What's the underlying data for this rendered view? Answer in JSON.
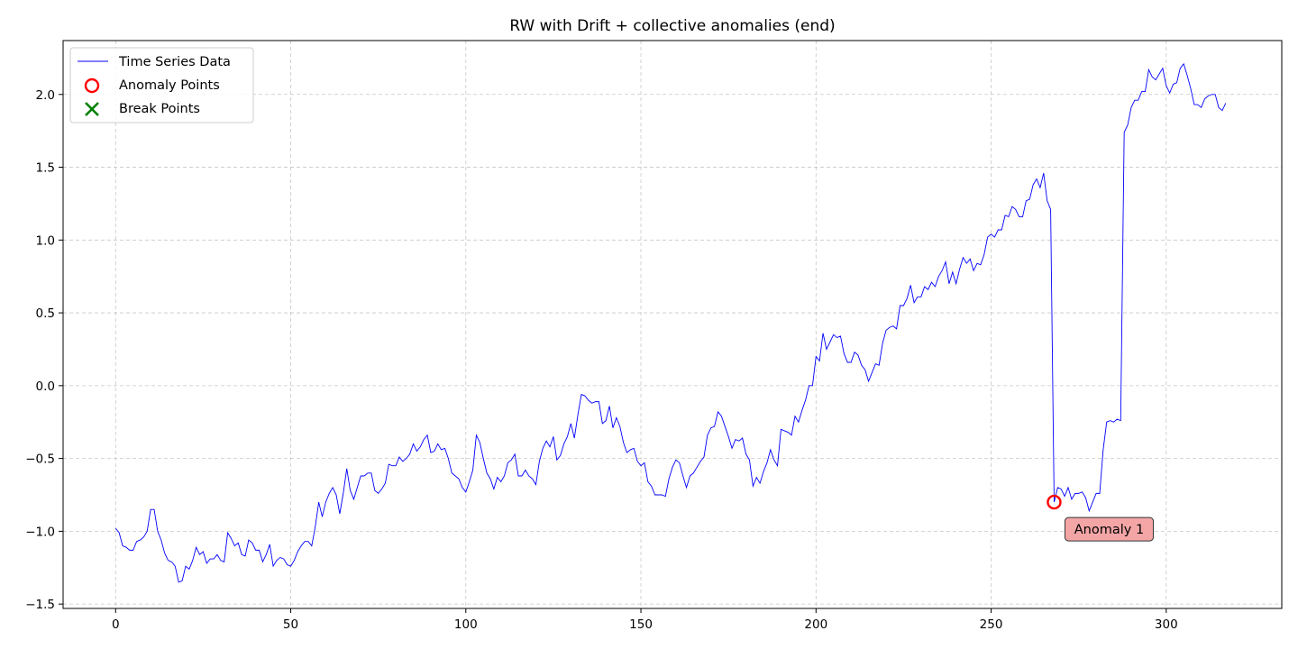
{
  "chart_data": {
    "type": "line",
    "title": "RW with Drift + collective anomalies (end)",
    "xlabel": "",
    "ylabel": "",
    "xlim": [
      -15,
      333
    ],
    "ylim": [
      -1.53,
      2.37
    ],
    "xticks": [
      0,
      50,
      100,
      150,
      200,
      250,
      300
    ],
    "yticks": [
      -1.5,
      -1.0,
      -0.5,
      0.0,
      0.5,
      1.0,
      1.5,
      2.0
    ],
    "grid": true,
    "legend_position": "top-left",
    "legend": {
      "series": "Time Series Data",
      "anomalies": "Anomaly Points",
      "breaks": "Break Points"
    },
    "colors": {
      "series": "#0000ff",
      "anomaly": "#ff0000",
      "break": "#008000",
      "annotation_fill": "#f4a6a6"
    },
    "series": [
      {
        "name": "Time Series Data",
        "x_start": 0,
        "values": [
          -0.98,
          -1.01,
          -1.1,
          -1.11,
          -1.13,
          -1.13,
          -1.07,
          -1.06,
          -1.04,
          -1.0,
          -0.85,
          -0.85,
          -1.0,
          -1.06,
          -1.15,
          -1.2,
          -1.21,
          -1.24,
          -1.35,
          -1.34,
          -1.24,
          -1.26,
          -1.2,
          -1.11,
          -1.16,
          -1.14,
          -1.22,
          -1.19,
          -1.19,
          -1.16,
          -1.2,
          -1.21,
          -1.01,
          -1.05,
          -1.1,
          -1.08,
          -1.16,
          -1.17,
          -1.06,
          -1.08,
          -1.13,
          -1.13,
          -1.21,
          -1.16,
          -1.09,
          -1.24,
          -1.2,
          -1.18,
          -1.19,
          -1.23,
          -1.24,
          -1.2,
          -1.14,
          -1.1,
          -1.07,
          -1.07,
          -1.1,
          -0.97,
          -0.8,
          -0.9,
          -0.8,
          -0.74,
          -0.7,
          -0.75,
          -0.88,
          -0.74,
          -0.57,
          -0.72,
          -0.78,
          -0.7,
          -0.62,
          -0.62,
          -0.6,
          -0.6,
          -0.72,
          -0.74,
          -0.71,
          -0.67,
          -0.54,
          -0.55,
          -0.55,
          -0.49,
          -0.52,
          -0.5,
          -0.47,
          -0.4,
          -0.45,
          -0.42,
          -0.37,
          -0.34,
          -0.46,
          -0.45,
          -0.4,
          -0.44,
          -0.43,
          -0.5,
          -0.6,
          -0.62,
          -0.64,
          -0.7,
          -0.73,
          -0.66,
          -0.58,
          -0.34,
          -0.39,
          -0.5,
          -0.6,
          -0.64,
          -0.71,
          -0.63,
          -0.66,
          -0.62,
          -0.53,
          -0.51,
          -0.47,
          -0.62,
          -0.62,
          -0.58,
          -0.62,
          -0.64,
          -0.68,
          -0.52,
          -0.43,
          -0.38,
          -0.42,
          -0.35,
          -0.51,
          -0.48,
          -0.4,
          -0.35,
          -0.26,
          -0.36,
          -0.2,
          -0.06,
          -0.07,
          -0.1,
          -0.12,
          -0.11,
          -0.11,
          -0.26,
          -0.24,
          -0.14,
          -0.29,
          -0.22,
          -0.28,
          -0.39,
          -0.46,
          -0.44,
          -0.43,
          -0.52,
          -0.55,
          -0.53,
          -0.66,
          -0.69,
          -0.75,
          -0.75,
          -0.75,
          -0.76,
          -0.64,
          -0.56,
          -0.51,
          -0.53,
          -0.62,
          -0.7,
          -0.62,
          -0.6,
          -0.56,
          -0.52,
          -0.49,
          -0.34,
          -0.29,
          -0.28,
          -0.18,
          -0.21,
          -0.28,
          -0.35,
          -0.43,
          -0.37,
          -0.38,
          -0.36,
          -0.47,
          -0.51,
          -0.69,
          -0.63,
          -0.67,
          -0.59,
          -0.53,
          -0.44,
          -0.51,
          -0.55,
          -0.3,
          -0.31,
          -0.32,
          -0.34,
          -0.21,
          -0.25,
          -0.17,
          -0.1,
          0.0,
          0.0,
          0.2,
          0.17,
          0.36,
          0.25,
          0.3,
          0.35,
          0.33,
          0.34,
          0.22,
          0.16,
          0.16,
          0.23,
          0.21,
          0.14,
          0.11,
          0.03,
          0.09,
          0.15,
          0.14,
          0.29,
          0.38,
          0.4,
          0.41,
          0.39,
          0.55,
          0.55,
          0.6,
          0.69,
          0.57,
          0.61,
          0.61,
          0.68,
          0.66,
          0.71,
          0.68,
          0.75,
          0.79,
          0.85,
          0.7,
          0.78,
          0.7,
          0.8,
          0.88,
          0.84,
          0.87,
          0.79,
          0.84,
          0.83,
          0.9,
          1.02,
          1.04,
          1.02,
          1.07,
          1.07,
          1.17,
          1.16,
          1.23,
          1.21,
          1.16,
          1.16,
          1.27,
          1.28,
          1.38,
          1.42,
          1.36,
          1.46,
          1.27,
          1.21,
          -0.8,
          -0.7,
          -0.71,
          -0.76,
          -0.7,
          -0.78,
          -0.74,
          -0.74,
          -0.73,
          -0.77,
          -0.86,
          -0.8,
          -0.74,
          -0.74,
          -0.44,
          -0.25,
          -0.24,
          -0.25,
          -0.23,
          -0.24,
          1.74,
          1.79,
          1.91,
          1.96,
          1.96,
          2.02,
          2.02,
          2.17,
          2.12,
          2.1,
          2.14,
          2.18,
          2.06,
          2.01,
          2.07,
          2.08,
          2.18,
          2.21,
          2.13,
          2.04,
          1.93,
          1.93,
          1.91,
          1.97,
          1.99,
          2.0,
          2.0,
          1.91,
          1.89,
          1.94
        ]
      }
    ],
    "anomalies": [
      {
        "x": 268,
        "y": -0.8,
        "label": "Anomaly 1"
      }
    ],
    "break_points": []
  }
}
